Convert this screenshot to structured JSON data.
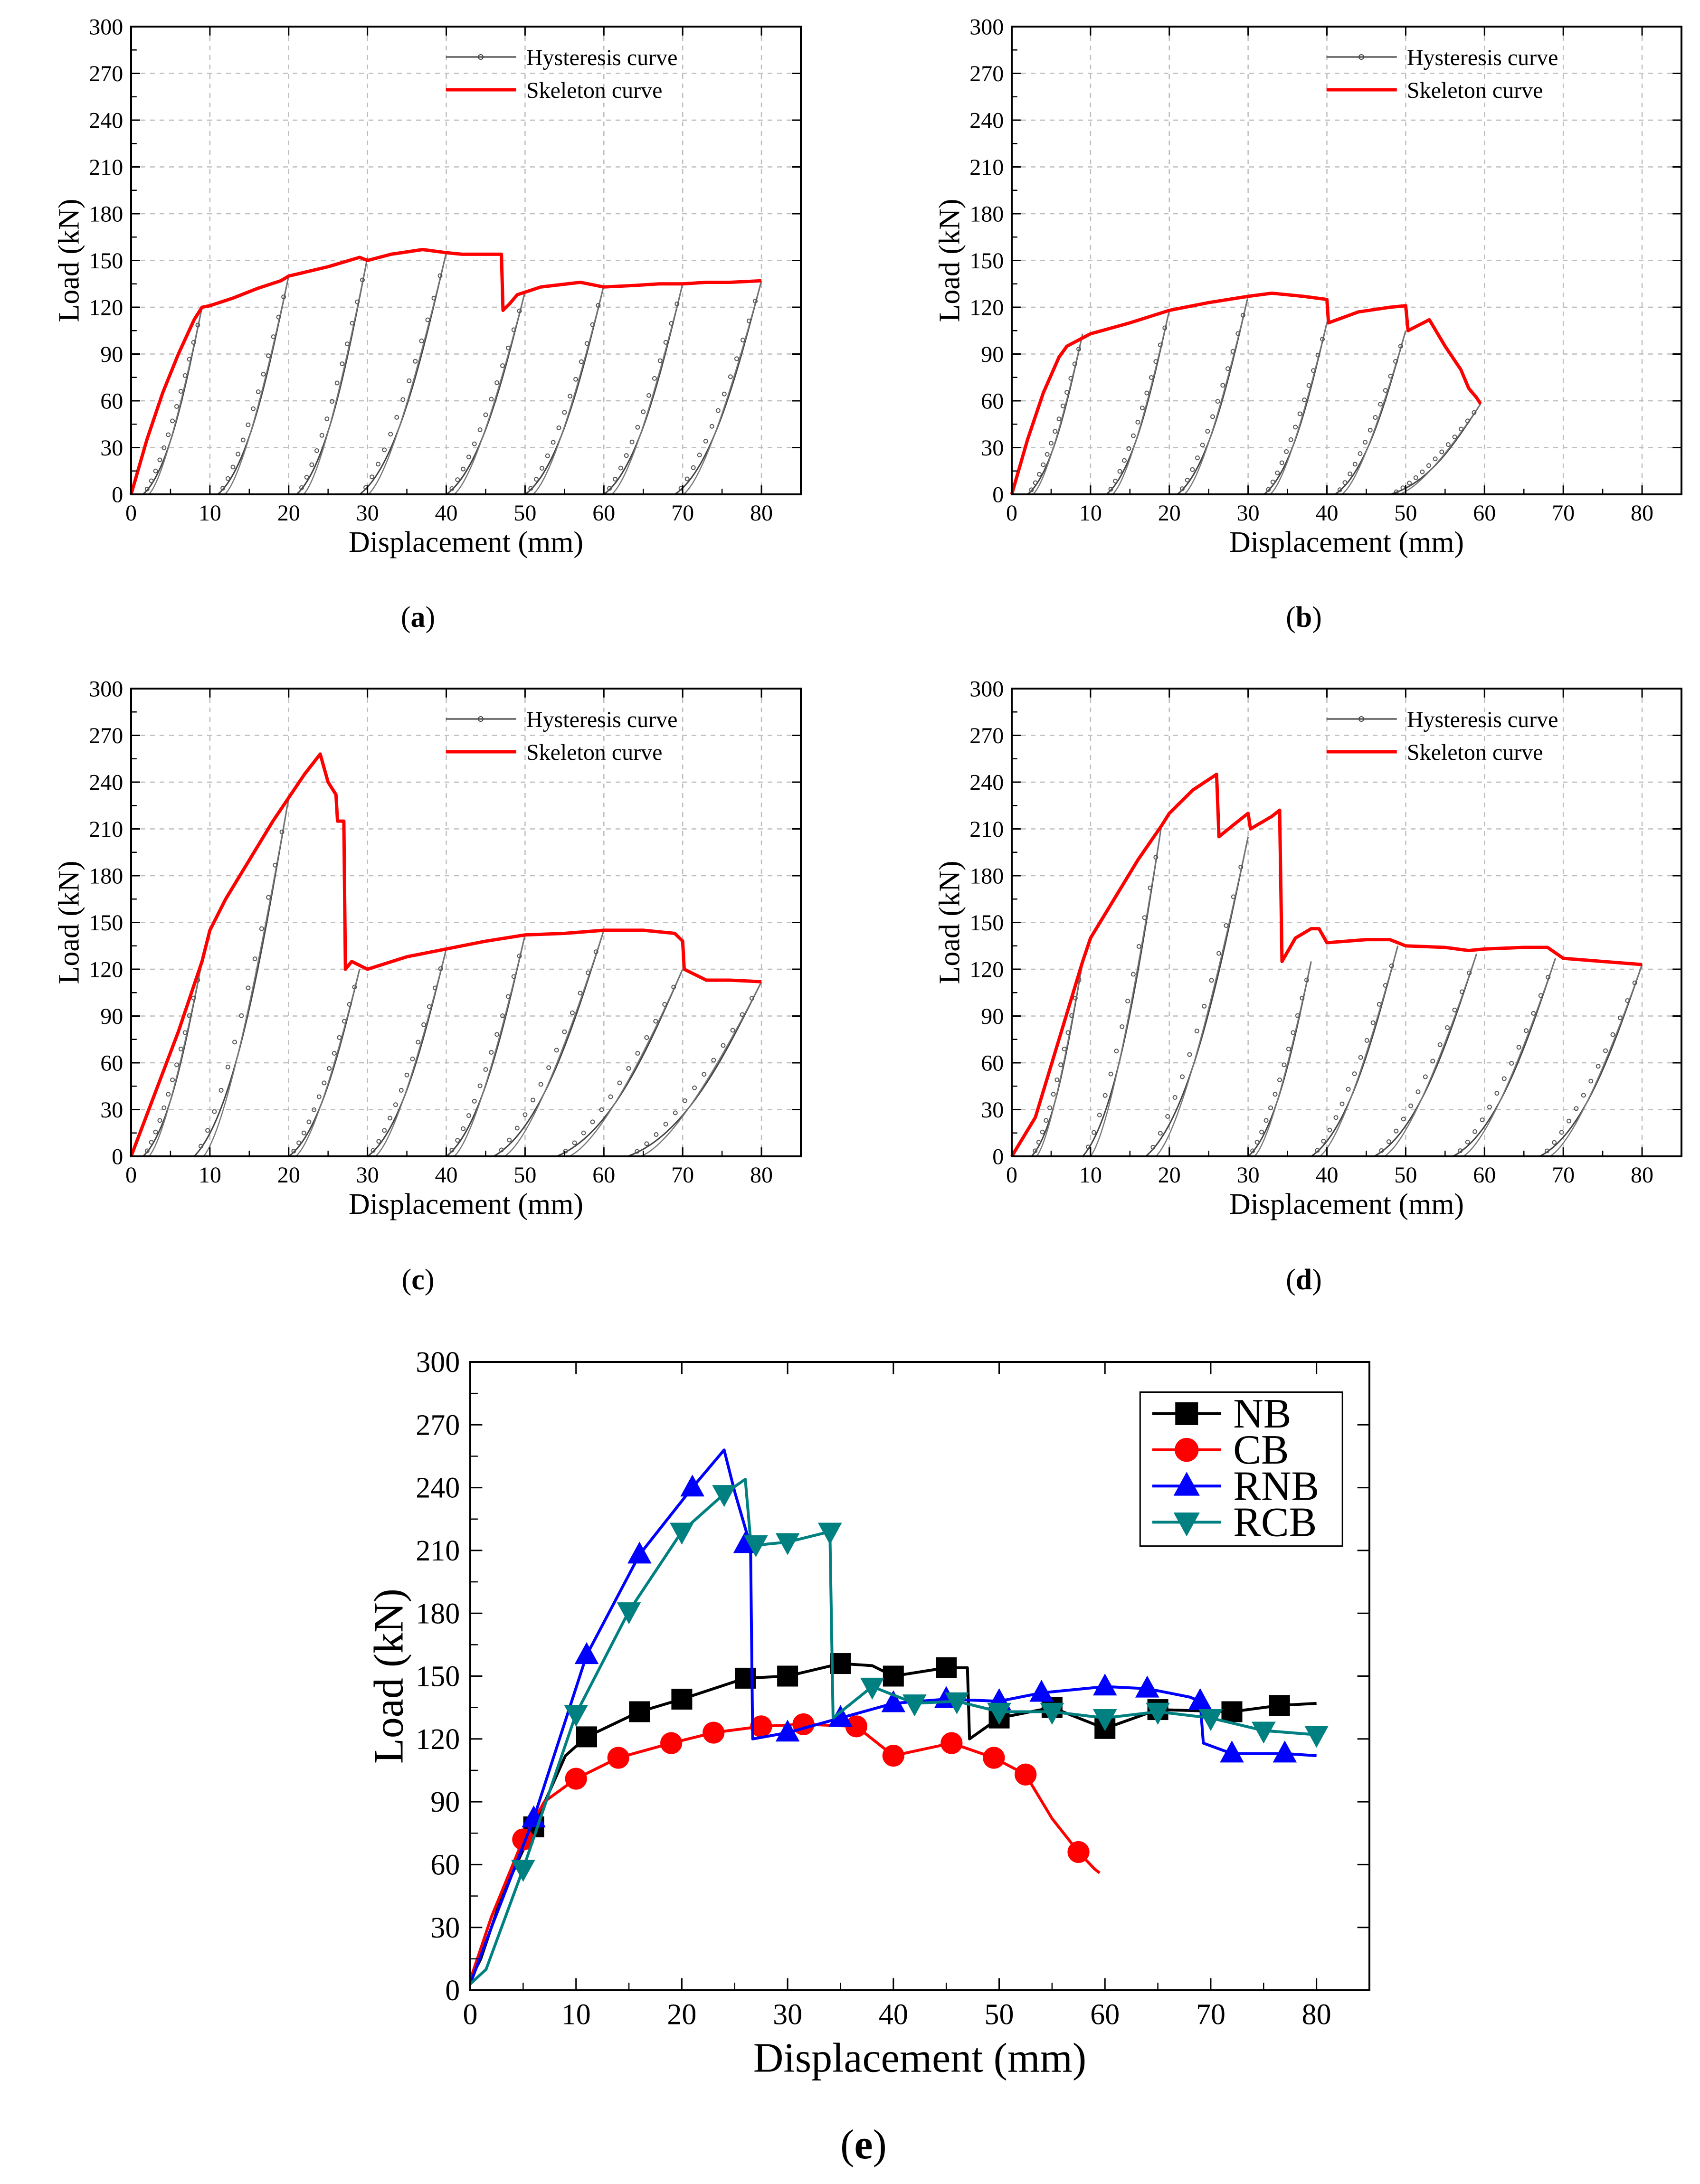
{
  "chart_data": [
    {
      "panel": "a",
      "caption": "(a)",
      "type": "line",
      "xlabel": "Displacement (mm)",
      "ylabel": "Load (kN)",
      "xlim": [
        0,
        85
      ],
      "ylim": [
        0,
        300
      ],
      "xticks": [
        0,
        10,
        20,
        30,
        40,
        50,
        60,
        70,
        80
      ],
      "yticks": [
        0,
        30,
        60,
        90,
        120,
        150,
        180,
        210,
        240,
        270,
        300
      ],
      "grid": true,
      "legend": [
        "Hysteresis curve",
        "Skeleton curve"
      ],
      "legend_position": "top-center",
      "skeleton": {
        "name": "Skeleton curve",
        "color": "#ff0000",
        "x": [
          0,
          2,
          4,
          6,
          8,
          9,
          10,
          13,
          16,
          19,
          20,
          25,
          29,
          30,
          33,
          37,
          40,
          42,
          47,
          47.2,
          48,
          49,
          52,
          57,
          60,
          64,
          67,
          70,
          73,
          76,
          80
        ],
        "y": [
          0,
          35,
          65,
          90,
          112,
          120,
          121,
          126,
          132,
          137,
          140,
          146,
          152,
          150,
          154,
          157,
          155,
          154,
          154,
          118,
          122,
          128,
          133,
          136,
          133,
          134,
          135,
          135,
          136,
          136,
          137
        ]
      },
      "hysteresis": {
        "name": "Hysteresis curve",
        "color": "#666666",
        "loops": [
          {
            "x0": 1.5,
            "peak": [
              9,
              120
            ]
          },
          {
            "x0": 11,
            "peak": [
              20,
              140
            ]
          },
          {
            "x0": 21,
            "peak": [
              30,
              152
            ]
          },
          {
            "x0": 29,
            "peak": [
              40,
              155
            ]
          },
          {
            "x0": 40,
            "peak": [
              50,
              130
            ]
          },
          {
            "x0": 50,
            "peak": [
              60,
              134
            ]
          },
          {
            "x0": 60,
            "peak": [
              70,
              135
            ]
          },
          {
            "x0": 69,
            "peak": [
              80,
              137
            ]
          }
        ]
      }
    },
    {
      "panel": "b",
      "caption": "(b)",
      "type": "line",
      "xlabel": "Displacement (mm)",
      "ylabel": "Load (kN)",
      "xlim": [
        0,
        85
      ],
      "ylim": [
        0,
        300
      ],
      "xticks": [
        0,
        10,
        20,
        30,
        40,
        50,
        60,
        70,
        80
      ],
      "yticks": [
        0,
        30,
        60,
        90,
        120,
        150,
        180,
        210,
        240,
        270,
        300
      ],
      "grid": true,
      "legend": [
        "Hysteresis curve",
        "Skeleton curve"
      ],
      "legend_position": "top-center",
      "skeleton": {
        "name": "Skeleton curve",
        "color": "#ff0000",
        "x": [
          0,
          2,
          4,
          6,
          7,
          10,
          15,
          20,
          25,
          30,
          33,
          37,
          40,
          40.2,
          44,
          48,
          50,
          50.3,
          53,
          55,
          57,
          58,
          59,
          59.5
        ],
        "y": [
          0,
          35,
          65,
          88,
          95,
          103,
          110,
          118,
          123,
          127,
          129,
          127,
          125,
          110,
          117,
          120,
          121,
          105,
          112,
          95,
          80,
          68,
          62,
          58
        ]
      },
      "hysteresis": {
        "name": "Hysteresis curve",
        "color": "#666666",
        "loops": [
          {
            "x0": 2,
            "peak": [
              9,
              103
            ]
          },
          {
            "x0": 12,
            "peak": [
              20,
              118
            ]
          },
          {
            "x0": 21,
            "peak": [
              30,
              127
            ]
          },
          {
            "x0": 32,
            "peak": [
              40,
              110
            ]
          },
          {
            "x0": 41,
            "peak": [
              50,
              105
            ]
          },
          {
            "x0": 48,
            "peak": [
              59.5,
              58
            ]
          }
        ]
      }
    },
    {
      "panel": "c",
      "caption": "(c)",
      "type": "line",
      "xlabel": "Displacement (mm)",
      "ylabel": "Load (kN)",
      "xlim": [
        0,
        85
      ],
      "ylim": [
        0,
        300
      ],
      "xticks": [
        0,
        10,
        20,
        30,
        40,
        50,
        60,
        70,
        80
      ],
      "yticks": [
        0,
        30,
        60,
        90,
        120,
        150,
        180,
        210,
        240,
        270,
        300
      ],
      "grid": true,
      "legend": [
        "Hysteresis curve",
        "Skeleton curve"
      ],
      "legend_position": "top-center",
      "skeleton": {
        "name": "Skeleton curve",
        "color": "#ff0000",
        "x": [
          0,
          3,
          6,
          9,
          10,
          12,
          15,
          18,
          20,
          22,
          24,
          25,
          26,
          26.2,
          27,
          27.2,
          28,
          30,
          35,
          40,
          45,
          50,
          55,
          60,
          65,
          69,
          70,
          70.2,
          73,
          76,
          80
        ],
        "y": [
          0,
          40,
          80,
          125,
          145,
          165,
          190,
          215,
          230,
          245,
          258,
          240,
          232,
          215,
          215,
          120,
          125,
          120,
          128,
          133,
          138,
          142,
          143,
          145,
          145,
          143,
          138,
          120,
          113,
          113,
          112
        ]
      },
      "hysteresis": {
        "name": "Hysteresis curve",
        "color": "#666666",
        "loops": [
          {
            "x0": 1.5,
            "peak": [
              9,
              125
            ]
          },
          {
            "x0": 8,
            "peak": [
              20,
              230
            ]
          },
          {
            "x0": 20,
            "peak": [
              29,
              120
            ]
          },
          {
            "x0": 30,
            "peak": [
              40,
              133
            ]
          },
          {
            "x0": 40,
            "peak": [
              50,
              142
            ]
          },
          {
            "x0": 46,
            "peak": [
              60,
              145
            ]
          },
          {
            "x0": 54,
            "peak": [
              70,
              120
            ]
          },
          {
            "x0": 63,
            "peak": [
              80,
              112
            ]
          }
        ]
      }
    },
    {
      "panel": "d",
      "caption": "(d)",
      "type": "line",
      "xlabel": "Displacement (mm)",
      "ylabel": "Load (kN)",
      "xlim": [
        0,
        85
      ],
      "ylim": [
        0,
        300
      ],
      "xticks": [
        0,
        10,
        20,
        30,
        40,
        50,
        60,
        70,
        80
      ],
      "yticks": [
        0,
        30,
        60,
        90,
        120,
        150,
        180,
        210,
        240,
        270,
        300
      ],
      "grid": true,
      "legend": [
        "Hysteresis curve",
        "Skeleton curve"
      ],
      "legend_position": "top-center",
      "skeleton": {
        "name": "Skeleton curve",
        "color": "#ff0000",
        "x": [
          0,
          3,
          6,
          9,
          10,
          13,
          16,
          19,
          20,
          23,
          26,
          26.3,
          28,
          30,
          30.3,
          33,
          34,
          34.3,
          36,
          38,
          39,
          40,
          45,
          48,
          50,
          55,
          58,
          60,
          65,
          68,
          70,
          75,
          80
        ],
        "y": [
          0,
          25,
          75,
          125,
          140,
          165,
          190,
          212,
          220,
          235,
          245,
          205,
          212,
          220,
          210,
          218,
          222,
          125,
          140,
          146,
          146,
          137,
          139,
          139,
          135,
          134,
          132,
          133,
          134,
          134,
          127,
          125,
          123
        ]
      },
      "hysteresis": {
        "name": "Hysteresis curve",
        "color": "#666666",
        "loops": [
          {
            "x0": 2.5,
            "peak": [
              9,
              125
            ]
          },
          {
            "x0": 9,
            "peak": [
              19,
              212
            ]
          },
          {
            "x0": 17,
            "peak": [
              30,
              205
            ]
          },
          {
            "x0": 30,
            "peak": [
              38,
              125
            ]
          },
          {
            "x0": 38,
            "peak": [
              49,
              135
            ]
          },
          {
            "x0": 46,
            "peak": [
              59,
              130
            ]
          },
          {
            "x0": 56,
            "peak": [
              69,
              127
            ]
          },
          {
            "x0": 67,
            "peak": [
              80,
              123
            ]
          }
        ]
      }
    },
    {
      "panel": "e",
      "caption": "(e)",
      "type": "line",
      "xlabel": "Displacement (mm)",
      "ylabel": "Load (kN)",
      "xlim": [
        0,
        85
      ],
      "ylim": [
        0,
        300
      ],
      "xticks": [
        0,
        10,
        20,
        30,
        40,
        50,
        60,
        70,
        80
      ],
      "yticks": [
        0,
        30,
        60,
        90,
        120,
        150,
        180,
        210,
        240,
        270,
        300
      ],
      "grid": false,
      "legend": [
        "NB",
        "CB",
        "RNB",
        "RCB"
      ],
      "legend_position": "top-right",
      "series": [
        {
          "name": "NB",
          "color": "#000000",
          "marker": "square",
          "x": [
            0,
            1,
            3,
            6,
            9,
            11,
            16,
            20,
            26,
            30,
            35,
            38,
            40,
            45,
            47,
            47.2,
            50,
            55,
            60,
            65,
            72,
            76.5,
            80
          ],
          "y": [
            5,
            15,
            45,
            78,
            112,
            121,
            133,
            139,
            149,
            150,
            156,
            155,
            150,
            154,
            154,
            120,
            130,
            135,
            125,
            134,
            133,
            136,
            137
          ],
          "markers_x": [
            6,
            11,
            16,
            20,
            26,
            30,
            35,
            40,
            45,
            50,
            55,
            60,
            65,
            72,
            76.5
          ],
          "markers_y": [
            78,
            121,
            133,
            139,
            149,
            150,
            156,
            150,
            154,
            130,
            135,
            125,
            134,
            133,
            136
          ]
        },
        {
          "name": "CB",
          "color": "#ff0000",
          "marker": "circle",
          "x": [
            0,
            2,
            5,
            7,
            10,
            14,
            19,
            23,
            27.5,
            31.5,
            36.5,
            40,
            45.5,
            49.5,
            52.5,
            55,
            57.5,
            59,
            59.5
          ],
          "y": [
            5,
            35,
            72,
            90,
            101,
            111,
            118,
            123,
            126,
            127,
            126,
            112,
            118,
            111,
            103,
            82,
            66,
            58,
            56
          ],
          "markers_x": [
            5,
            10,
            14,
            19,
            23,
            27.5,
            31.5,
            36.5,
            40,
            45.5,
            49.5,
            52.5,
            57.5
          ],
          "markers_y": [
            72,
            101,
            111,
            118,
            123,
            126,
            127,
            126,
            112,
            118,
            111,
            103,
            66
          ]
        },
        {
          "name": "RNB",
          "color": "#0000ff",
          "marker": "triangle-up",
          "x": [
            0,
            2,
            6,
            11,
            16,
            21,
            24,
            25,
            26.5,
            26.7,
            30,
            35,
            40,
            45,
            50,
            54,
            60,
            64,
            68,
            69,
            69.3,
            72,
            77,
            80
          ],
          "y": [
            3,
            30,
            82,
            160,
            208,
            240,
            258,
            238,
            212,
            120,
            123,
            130,
            137,
            139,
            138,
            142,
            145,
            144,
            140,
            138,
            118,
            113,
            113,
            112
          ],
          "markers_x": [
            6,
            11,
            16,
            21,
            26,
            30,
            35,
            40,
            45,
            50,
            54,
            60,
            64,
            69,
            72,
            77
          ],
          "markers_y": [
            82,
            160,
            208,
            240,
            213,
            123,
            130,
            137,
            139,
            138,
            142,
            145,
            144,
            138,
            113,
            113
          ]
        },
        {
          "name": "RCB",
          "color": "#008080",
          "marker": "triangle-down",
          "x": [
            0,
            1.5,
            5,
            10,
            15,
            20,
            24,
            26,
            26.5,
            26.8,
            28,
            30,
            34,
            34.3,
            38,
            42,
            46,
            50,
            55,
            60,
            65,
            70,
            75,
            80
          ],
          "y": [
            3,
            10,
            58,
            132,
            181,
            219,
            237,
            244,
            215,
            212,
            213,
            214,
            219,
            130,
            145,
            137,
            138,
            133,
            133,
            130,
            133,
            130,
            124,
            122
          ],
          "markers_x": [
            5,
            10,
            15,
            20,
            24,
            27,
            30,
            34,
            38,
            42,
            46,
            50,
            55,
            60,
            65,
            70,
            75,
            80
          ],
          "markers_y": [
            58,
            132,
            181,
            219,
            237,
            213,
            214,
            219,
            145,
            137,
            138,
            133,
            133,
            130,
            133,
            130,
            124,
            122
          ]
        }
      ]
    }
  ]
}
